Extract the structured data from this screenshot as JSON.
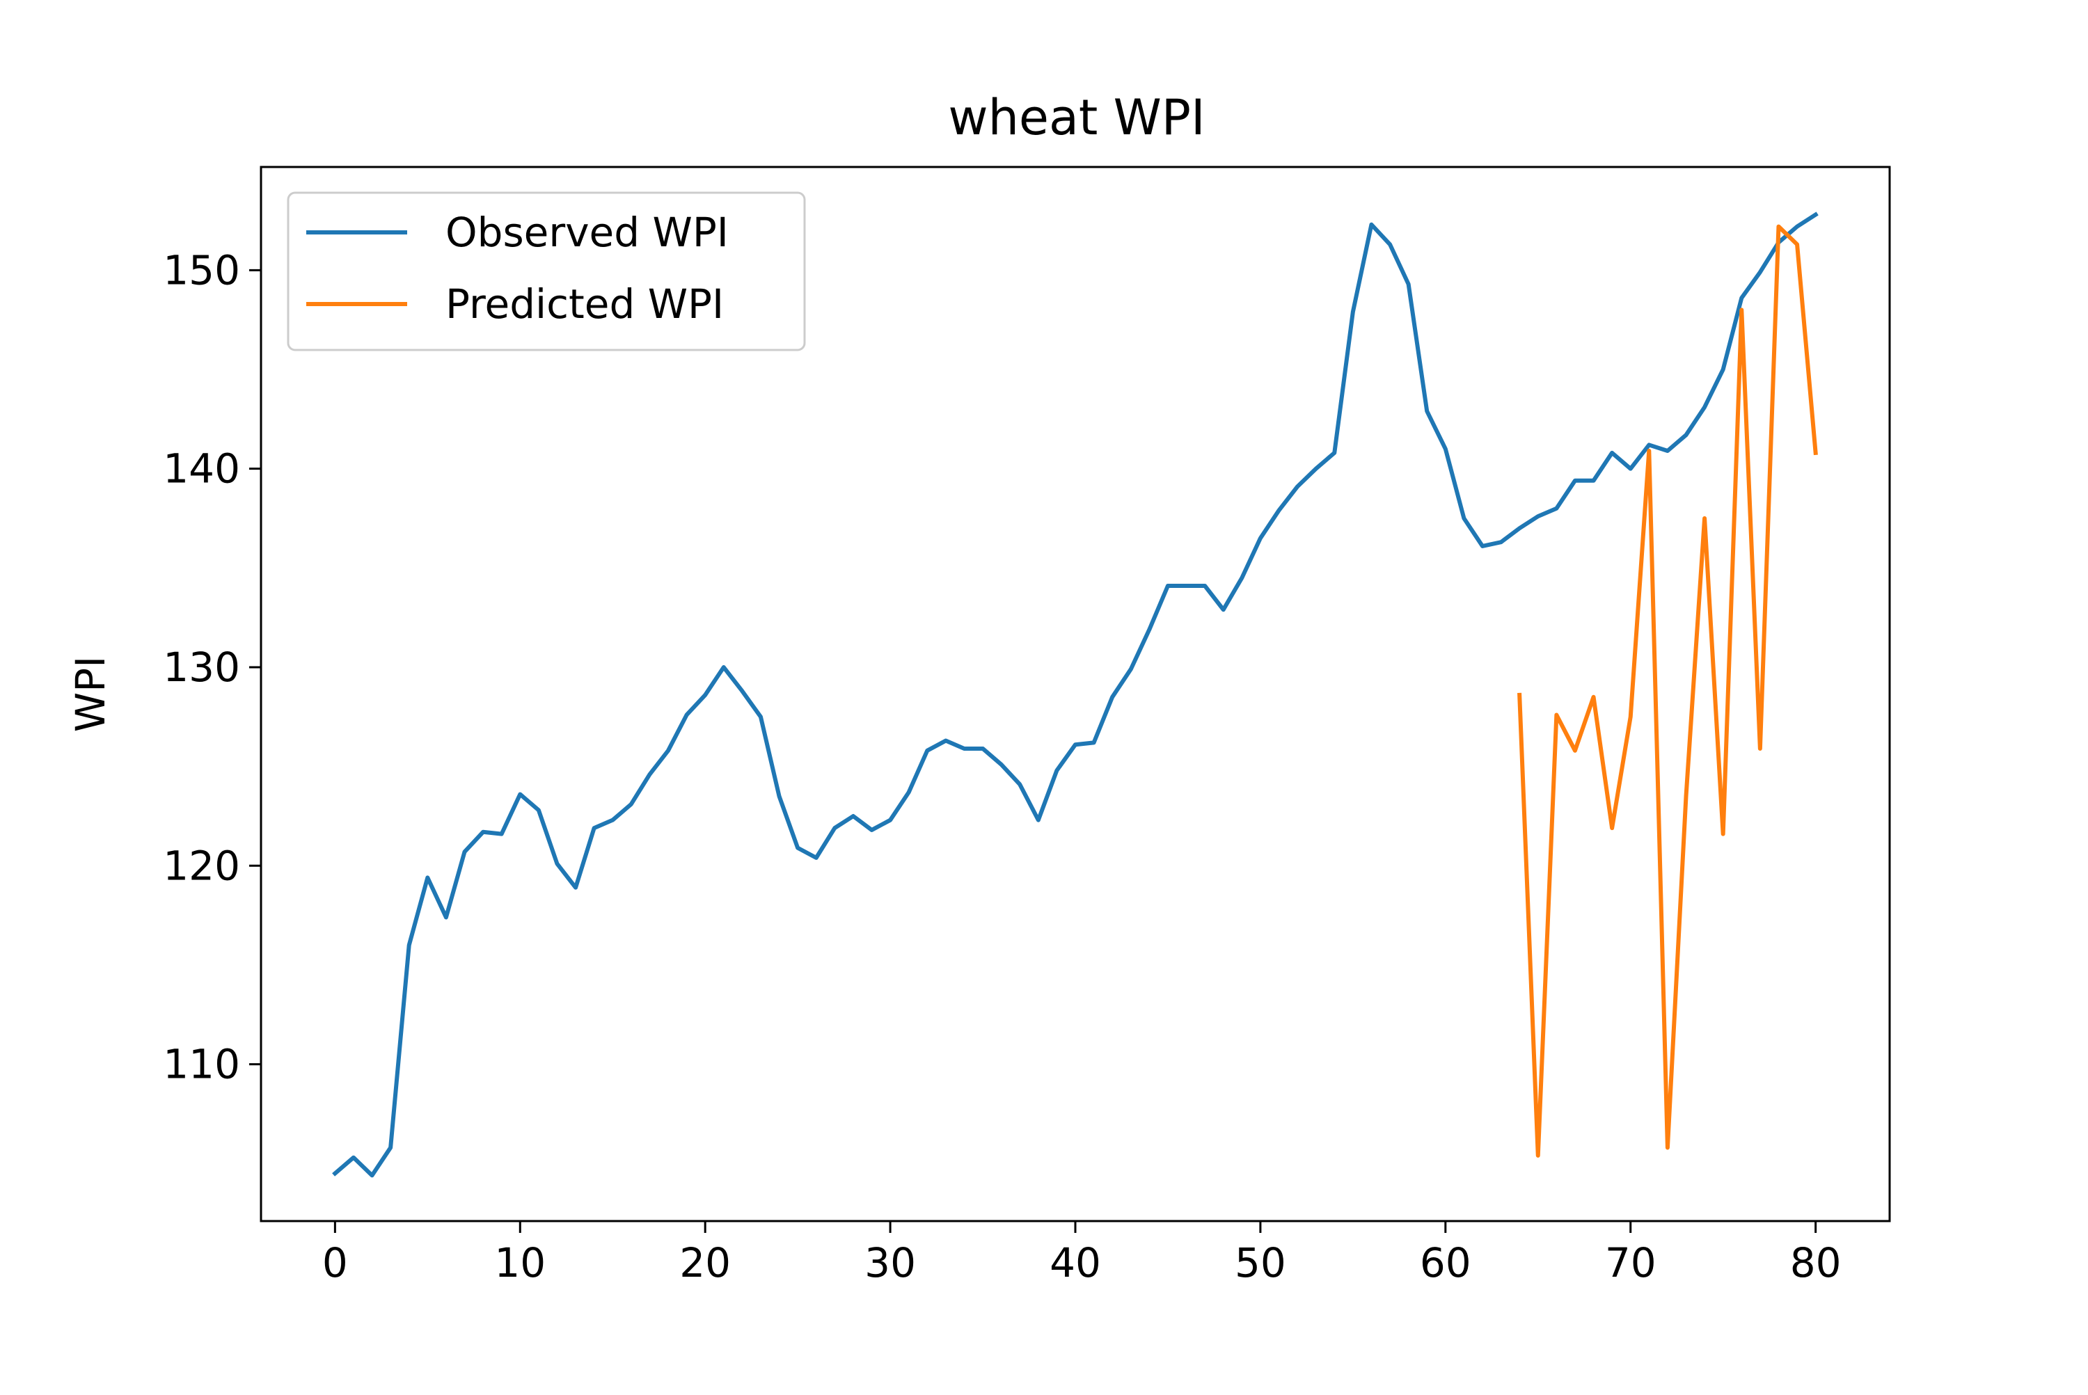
{
  "chart_data": {
    "type": "line",
    "title": "wheat WPI",
    "xlabel": "",
    "ylabel": "WPI",
    "xlim": [
      -4,
      84
    ],
    "ylim": [
      102.1,
      155.2
    ],
    "xticks": [
      0,
      10,
      20,
      30,
      40,
      50,
      60,
      70,
      80
    ],
    "yticks": [
      110,
      120,
      130,
      140,
      150
    ],
    "grid": false,
    "legend": "upper-left",
    "series": [
      {
        "name": "Observed WPI",
        "color": "#1f77b4",
        "x": [
          0,
          1,
          2,
          3,
          4,
          5,
          6,
          7,
          8,
          9,
          10,
          11,
          12,
          13,
          14,
          15,
          16,
          17,
          18,
          19,
          20,
          21,
          22,
          23,
          24,
          25,
          26,
          27,
          28,
          29,
          30,
          31,
          32,
          33,
          34,
          35,
          36,
          37,
          38,
          39,
          40,
          41,
          42,
          43,
          44,
          45,
          46,
          47,
          48,
          49,
          50,
          51,
          52,
          53,
          54,
          55,
          56,
          57,
          58,
          59,
          60,
          61,
          62,
          63,
          64,
          65,
          66,
          67,
          68,
          69,
          70,
          71,
          72,
          73,
          74,
          75,
          76,
          77,
          78,
          79,
          80
        ],
        "y": [
          104.5,
          105.3,
          104.4,
          105.8,
          116.0,
          119.4,
          117.4,
          120.7,
          121.7,
          121.6,
          123.6,
          122.8,
          120.1,
          118.9,
          121.9,
          122.3,
          123.1,
          124.6,
          125.8,
          127.6,
          128.6,
          130.0,
          128.8,
          127.5,
          123.5,
          120.9,
          120.4,
          121.9,
          122.5,
          121.8,
          122.3,
          123.7,
          125.8,
          126.3,
          125.9,
          125.9,
          125.1,
          124.1,
          122.3,
          124.8,
          126.1,
          126.2,
          128.5,
          129.9,
          131.9,
          134.1,
          134.1,
          134.1,
          132.9,
          134.5,
          136.5,
          137.9,
          139.1,
          140.0,
          140.8,
          147.9,
          152.3,
          151.3,
          149.3,
          142.9,
          141.0,
          137.5,
          136.1,
          136.3,
          137.0,
          137.6,
          138.0,
          139.4,
          139.4,
          140.8,
          140.0,
          141.2,
          140.9,
          141.7,
          143.1,
          145.0,
          148.6,
          149.9,
          151.4,
          152.2,
          152.8
        ]
      },
      {
        "name": "Predicted WPI",
        "color": "#ff7f0e",
        "x": [
          64,
          65,
          66,
          67,
          68,
          69,
          70,
          71,
          72,
          73,
          74,
          75,
          76,
          77,
          78,
          79,
          80
        ],
        "y": [
          128.6,
          105.4,
          127.6,
          125.8,
          128.5,
          121.9,
          127.5,
          140.9,
          105.8,
          123.5,
          137.5,
          121.6,
          148.0,
          125.9,
          152.2,
          151.3,
          140.8
        ]
      }
    ]
  }
}
